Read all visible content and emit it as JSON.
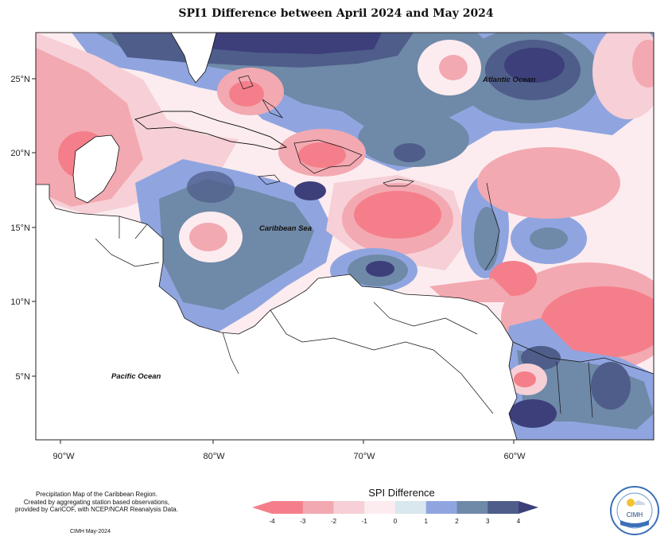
{
  "title": "SPI1 Difference between April 2024 and May 2024",
  "axes": {
    "x_ticks": [
      "90°W",
      "80°W",
      "70°W",
      "60°W"
    ],
    "y_ticks": [
      "25°N",
      "20°N",
      "15°N",
      "10°N",
      "5°N"
    ]
  },
  "ocean_labels": {
    "atlantic": "Atlantic Ocean",
    "caribbean": "Caribbean Sea",
    "pacific": "Pacific Ocean"
  },
  "legend": {
    "title": "SPI Difference",
    "ticks": [
      "-4",
      "-3",
      "-2",
      "-1",
      "0",
      "1",
      "2",
      "3",
      "4"
    ],
    "colors": [
      "#f47f8a",
      "#f3a9b1",
      "#f6d0d6",
      "#fcecef",
      "#d9e7ee",
      "#90a5e0",
      "#6f89a8",
      "#4f5d8a",
      "#3c3f7a"
    ]
  },
  "footer": {
    "line1": "Precipitation Map of the Caribbean Region.",
    "line2": "Created by aggregating station based observations,",
    "line3": "provided by CariCOF, with NCEP/NCAR Reanalysis Data.",
    "credit": "CIMH May-2024"
  },
  "logo": {
    "text": "CIMH"
  }
}
